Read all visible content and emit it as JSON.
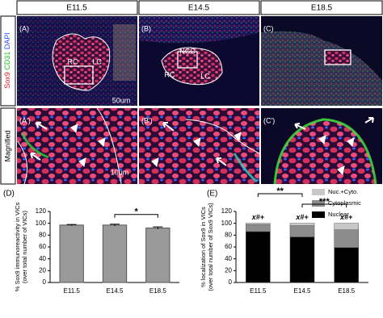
{
  "columns": [
    "E11.5",
    "E14.5",
    "E18.5"
  ],
  "stain_labels": [
    {
      "text": "Sox9",
      "color": "#e8202a"
    },
    {
      "text": "CD31",
      "color": "#20c020"
    },
    {
      "text": "DAPI",
      "color": "#3050ff"
    }
  ],
  "magnified_label": "Magnified",
  "panels": [
    {
      "label": "(A)",
      "annotations": [
        "RC",
        "LC",
        "50um"
      ]
    },
    {
      "label": "(B)",
      "annotations": [
        "NCC",
        "RC",
        "LC"
      ]
    },
    {
      "label": "(C)",
      "annotations": []
    },
    {
      "label": "(A')",
      "annotations": [
        "10um"
      ]
    },
    {
      "label": "(B')",
      "annotations": []
    },
    {
      "label": "(C')",
      "annotations": []
    }
  ],
  "chart_data": [
    {
      "type": "bar",
      "panel_label": "(D)",
      "y_label": [
        "% Sox9 immunoreactivity in VICs",
        "(over total number of VICs)"
      ],
      "categories": [
        "E11.5",
        "E14.5",
        "E18.5"
      ],
      "values": [
        97,
        97,
        92
      ],
      "errors": [
        1,
        1.5,
        2
      ],
      "color": "#9a9a9a",
      "ylim": [
        0,
        120
      ],
      "yticks": [
        0,
        20,
        40,
        60,
        80,
        100,
        120
      ],
      "significance": [
        {
          "from": 1,
          "to": 2,
          "label": "*"
        }
      ]
    },
    {
      "type": "stacked_bar",
      "panel_label": "(E)",
      "y_label": [
        "% localization of Sox9 in VICs",
        "(over total number of Sox9 VICs)"
      ],
      "categories": [
        "E11.5",
        "E14.5",
        "E18.5"
      ],
      "series": [
        {
          "name": "Nuclear",
          "color": "#000000",
          "values": [
            86,
            77,
            59
          ],
          "errors": [
            3,
            2,
            4
          ]
        },
        {
          "name": "Cytoplasmic",
          "color": "#8c8c8c",
          "values": [
            12,
            19,
            30
          ]
        },
        {
          "name": "Nuc.+Cyto.",
          "color": "#c8c8c8",
          "values": [
            2,
            4,
            11
          ]
        }
      ],
      "top_labels": [
        "x#+",
        "x#+",
        "x#+"
      ],
      "ylim": [
        0,
        120
      ],
      "yticks": [
        0,
        20,
        40,
        60,
        80,
        100,
        120
      ],
      "legend": "upper right",
      "significance": [
        {
          "from": 0,
          "to": 1,
          "label": "**"
        },
        {
          "from": 1,
          "to": 2,
          "label": "***"
        }
      ]
    }
  ]
}
